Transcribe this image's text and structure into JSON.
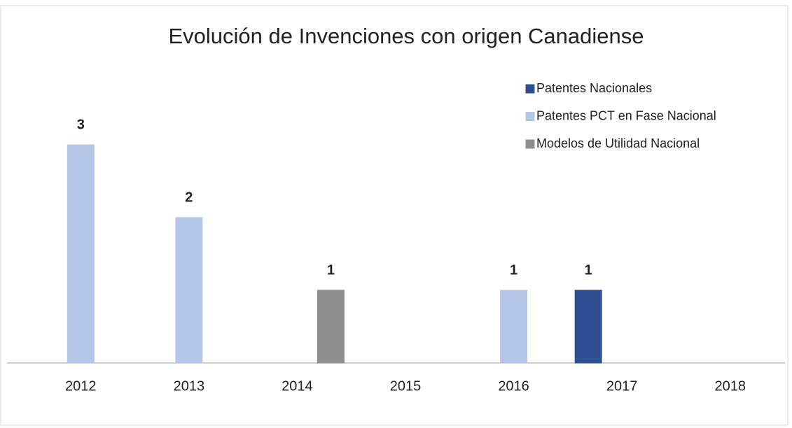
{
  "chart_data": {
    "type": "bar",
    "title": "Evolución de Invenciones con origen Canadiense",
    "categories": [
      "2012",
      "2013",
      "2014",
      "2015",
      "2016",
      "2017",
      "2018"
    ],
    "series": [
      {
        "name": "Patentes Nacionales",
        "color": "#2f4f94",
        "values": [
          null,
          null,
          null,
          null,
          null,
          1,
          null
        ]
      },
      {
        "name": "Patentes PCT en Fase Nacional",
        "color": "#b4c7e7",
        "values": [
          3,
          2,
          null,
          null,
          1,
          null,
          null
        ]
      },
      {
        "name": "Modelos de Utilidad Nacional",
        "color": "#8f8f8f",
        "values": [
          null,
          null,
          1,
          null,
          null,
          null,
          null
        ]
      }
    ],
    "ylim": [
      0,
      3.5
    ],
    "legend": "top-right"
  }
}
